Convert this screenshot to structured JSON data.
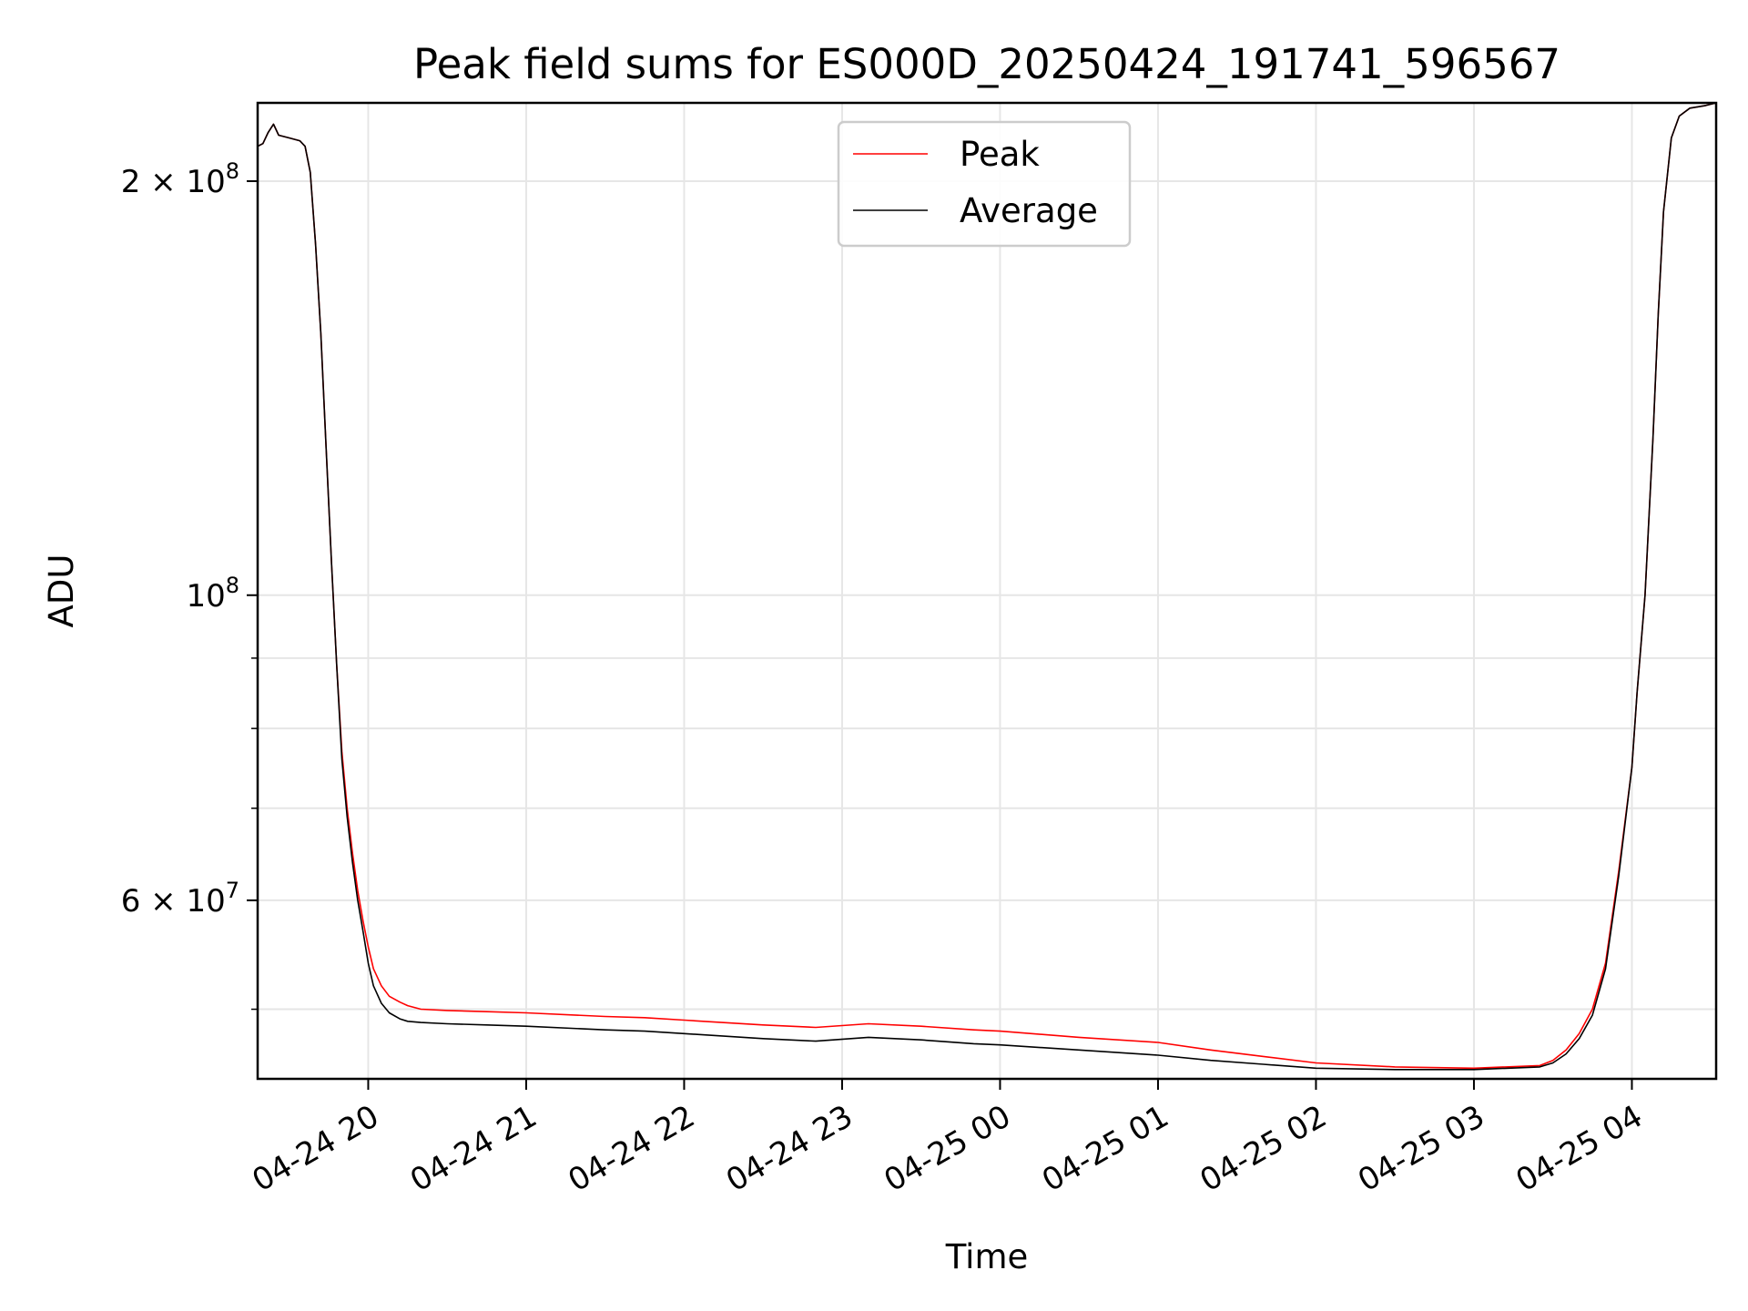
{
  "chart_data": {
    "type": "line",
    "title": "Peak field sums for ES000D_20250424_191741_596567",
    "xlabel": "Time",
    "ylabel": "ADU",
    "x_scale": "time",
    "y_scale": "log",
    "xlim": [
      "2025-04-24 19:18",
      "2025-04-25 04:32"
    ],
    "ylim": [
      44500000,
      228000000
    ],
    "grid": true,
    "legend_position": "upper-center",
    "x_ticks": [
      "04-24 20",
      "04-24 21",
      "04-24 22",
      "04-24 23",
      "04-25 00",
      "04-25 01",
      "04-25 02",
      "04-25 03",
      "04-25 04"
    ],
    "x_tick_values": [
      "2025-04-24 20:00",
      "2025-04-24 21:00",
      "2025-04-24 22:00",
      "2025-04-24 23:00",
      "2025-04-25 00:00",
      "2025-04-25 01:00",
      "2025-04-25 02:00",
      "2025-04-25 03:00",
      "2025-04-25 04:00"
    ],
    "y_ticks": [
      {
        "value": 200000000,
        "mantissa": "2",
        "exponent": "8"
      },
      {
        "value": 100000000,
        "mantissa": "",
        "exponent": "8"
      },
      {
        "value": 60000000,
        "mantissa": "6",
        "exponent": "7"
      }
    ],
    "y_minor_ticks": [
      50000000,
      70000000,
      80000000,
      90000000
    ],
    "series": [
      {
        "name": "Peak",
        "color": "#ff0000",
        "x": [
          "2025-04-24 19:18",
          "2025-04-24 19:20",
          "2025-04-24 19:22",
          "2025-04-24 19:24",
          "2025-04-24 19:26",
          "2025-04-24 19:30",
          "2025-04-24 19:34",
          "2025-04-24 19:36",
          "2025-04-24 19:38",
          "2025-04-24 19:40",
          "2025-04-24 19:42",
          "2025-04-24 19:44",
          "2025-04-24 19:46",
          "2025-04-24 19:48",
          "2025-04-24 19:50",
          "2025-04-24 19:52",
          "2025-04-24 19:54",
          "2025-04-24 19:56",
          "2025-04-24 19:58",
          "2025-04-24 20:00",
          "2025-04-24 20:02",
          "2025-04-24 20:05",
          "2025-04-24 20:08",
          "2025-04-24 20:12",
          "2025-04-24 20:15",
          "2025-04-24 20:20",
          "2025-04-24 20:30",
          "2025-04-24 20:45",
          "2025-04-24 21:00",
          "2025-04-24 21:30",
          "2025-04-24 21:45",
          "2025-04-24 22:00",
          "2025-04-24 22:30",
          "2025-04-24 22:50",
          "2025-04-24 23:10",
          "2025-04-24 23:30",
          "2025-04-24 23:50",
          "2025-04-25 00:00",
          "2025-04-25 00:30",
          "2025-04-25 01:00",
          "2025-04-25 01:20",
          "2025-04-25 01:40",
          "2025-04-25 02:00",
          "2025-04-25 02:30",
          "2025-04-25 03:00",
          "2025-04-25 03:25",
          "2025-04-25 03:30",
          "2025-04-25 03:35",
          "2025-04-25 03:40",
          "2025-04-25 03:45",
          "2025-04-25 03:50",
          "2025-04-25 03:55",
          "2025-04-25 04:00",
          "2025-04-25 04:02",
          "2025-04-25 04:05",
          "2025-04-25 04:08",
          "2025-04-25 04:10",
          "2025-04-25 04:12",
          "2025-04-25 04:15",
          "2025-04-25 04:18",
          "2025-04-25 04:22",
          "2025-04-25 04:28",
          "2025-04-25 04:32"
        ],
        "y": [
          212000000,
          213000000,
          217000000,
          220000000,
          216000000,
          215000000,
          214000000,
          212000000,
          203000000,
          180000000,
          155000000,
          128000000,
          106000000,
          89000000,
          77000000,
          70000000,
          65000000,
          61000000,
          58000000,
          55500000,
          53500000,
          52000000,
          51100000,
          50600000,
          50300000,
          50000000,
          49900000,
          49800000,
          49700000,
          49400000,
          49300000,
          49100000,
          48700000,
          48500000,
          48800000,
          48600000,
          48300000,
          48200000,
          47700000,
          47300000,
          46700000,
          46200000,
          45700000,
          45400000,
          45300000,
          45500000,
          45900000,
          46700000,
          48000000,
          50000000,
          54000000,
          63000000,
          75000000,
          85000000,
          100000000,
          130000000,
          160000000,
          190000000,
          215000000,
          223000000,
          226000000,
          227000000,
          228000000
        ]
      },
      {
        "name": "Average",
        "color": "#000000",
        "x": [
          "2025-04-24 19:18",
          "2025-04-24 19:20",
          "2025-04-24 19:22",
          "2025-04-24 19:24",
          "2025-04-24 19:26",
          "2025-04-24 19:30",
          "2025-04-24 19:34",
          "2025-04-24 19:36",
          "2025-04-24 19:38",
          "2025-04-24 19:40",
          "2025-04-24 19:42",
          "2025-04-24 19:44",
          "2025-04-24 19:46",
          "2025-04-24 19:48",
          "2025-04-24 19:50",
          "2025-04-24 19:52",
          "2025-04-24 19:54",
          "2025-04-24 19:56",
          "2025-04-24 19:58",
          "2025-04-24 20:00",
          "2025-04-24 20:02",
          "2025-04-24 20:05",
          "2025-04-24 20:08",
          "2025-04-24 20:12",
          "2025-04-24 20:15",
          "2025-04-24 20:20",
          "2025-04-24 20:30",
          "2025-04-24 20:45",
          "2025-04-24 21:00",
          "2025-04-24 21:30",
          "2025-04-24 21:45",
          "2025-04-24 22:00",
          "2025-04-24 22:30",
          "2025-04-24 22:50",
          "2025-04-24 23:10",
          "2025-04-24 23:30",
          "2025-04-24 23:50",
          "2025-04-25 00:00",
          "2025-04-25 00:30",
          "2025-04-25 01:00",
          "2025-04-25 01:20",
          "2025-04-25 01:40",
          "2025-04-25 02:00",
          "2025-04-25 02:30",
          "2025-04-25 03:00",
          "2025-04-25 03:25",
          "2025-04-25 03:30",
          "2025-04-25 03:35",
          "2025-04-25 03:40",
          "2025-04-25 03:45",
          "2025-04-25 03:50",
          "2025-04-25 03:55",
          "2025-04-25 04:00",
          "2025-04-25 04:02",
          "2025-04-25 04:05",
          "2025-04-25 04:08",
          "2025-04-25 04:10",
          "2025-04-25 04:12",
          "2025-04-25 04:15",
          "2025-04-25 04:18",
          "2025-04-25 04:22",
          "2025-04-25 04:28",
          "2025-04-25 04:32"
        ],
        "y": [
          212000000,
          213000000,
          217000000,
          220000000,
          216000000,
          215000000,
          214000000,
          212000000,
          203000000,
          180000000,
          155000000,
          128000000,
          106000000,
          89000000,
          76000000,
          69000000,
          64000000,
          60000000,
          57000000,
          54000000,
          52000000,
          50500000,
          49700000,
          49200000,
          49000000,
          48900000,
          48800000,
          48700000,
          48600000,
          48300000,
          48200000,
          48000000,
          47600000,
          47400000,
          47700000,
          47500000,
          47200000,
          47100000,
          46700000,
          46300000,
          45900000,
          45600000,
          45300000,
          45200000,
          45200000,
          45400000,
          45700000,
          46400000,
          47600000,
          49500000,
          53500000,
          62500000,
          75000000,
          85000000,
          100000000,
          130000000,
          160000000,
          190000000,
          215000000,
          223000000,
          226000000,
          227000000,
          228000000
        ]
      }
    ]
  }
}
